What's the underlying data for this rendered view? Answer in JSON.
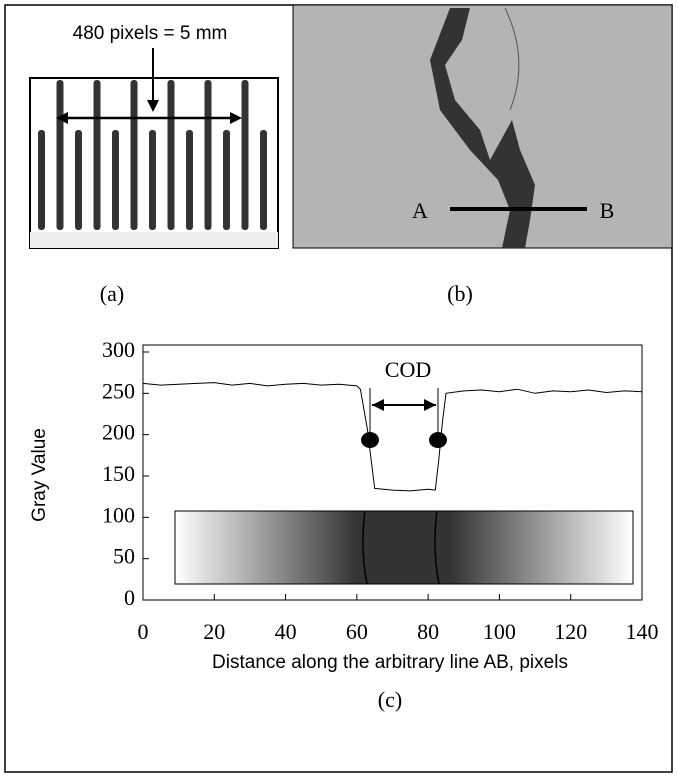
{
  "chart_data": {
    "type": "line",
    "scale_label": "480 pixels = 5 mm",
    "point_a": "A",
    "point_b": "B",
    "panel_a_label": "(a)",
    "panel_b_label": "(b)",
    "panel_c_label": "(c)",
    "annotation": "COD",
    "ylabel": "Gray Value",
    "xlabel": "Distance along the arbitrary line AB, pixels",
    "xlim": [
      0,
      140
    ],
    "ylim": [
      0,
      300
    ],
    "xticks": [
      0,
      20,
      40,
      60,
      80,
      100,
      120,
      140
    ],
    "yticks": [
      0,
      50,
      100,
      150,
      200,
      250,
      300
    ],
    "series": [
      {
        "color": "#000000",
        "x": [
          0,
          5,
          10,
          15,
          20,
          25,
          30,
          35,
          40,
          45,
          50,
          55,
          60,
          61,
          62,
          63,
          64,
          65,
          70,
          75,
          80,
          82,
          83,
          84,
          85,
          90,
          95,
          100,
          105,
          110,
          115,
          120,
          125,
          130,
          135,
          140
        ],
        "values": [
          262,
          260,
          261,
          262,
          263,
          260,
          262,
          259,
          261,
          262,
          260,
          261,
          259,
          255,
          230,
          205,
          170,
          135,
          133,
          132,
          134,
          133,
          170,
          215,
          250,
          253,
          254,
          252,
          255,
          250,
          253,
          252,
          254,
          251,
          253,
          252
        ]
      }
    ]
  }
}
